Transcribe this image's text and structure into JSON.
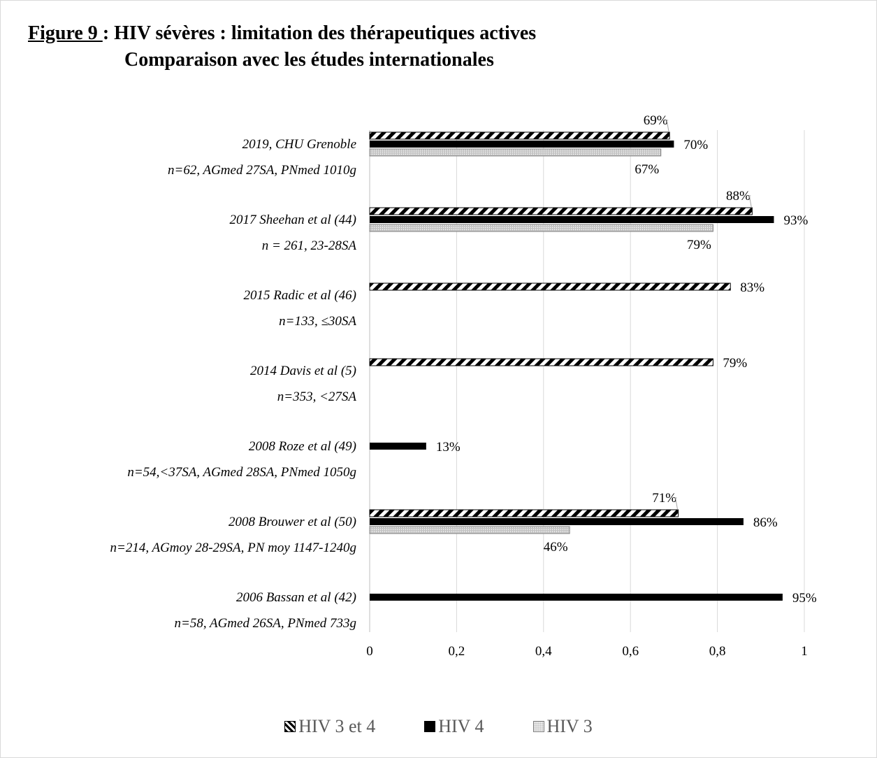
{
  "title": {
    "figure_label": "Figure 9 ",
    "line1": ": HIV sévères : limitation des thérapeutiques actives",
    "line2": "Comparaison avec les études internationales"
  },
  "chart_data": {
    "type": "bar",
    "orientation": "horizontal",
    "title": "Figure 9 : HIV sévères : limitation des thérapeutiques actives — Comparaison avec les études internationales",
    "categories": [
      {
        "name": "2019, CHU Grenoble",
        "detail": "n=62, AGmed 27SA, PNmed 1010g"
      },
      {
        "name": "2017 Sheehan et al (44)",
        "detail": "n = 261, 23-28SA"
      },
      {
        "name": "2015 Radic et al (46)",
        "detail": "n=133, ≤30SA"
      },
      {
        "name": "2014 Davis et al (5)",
        "detail": "n=353, <27SA"
      },
      {
        "name": "2008 Roze et al (49)",
        "detail": "n=54,<37SA, AGmed 28SA, PNmed 1050g"
      },
      {
        "name": "2008 Brouwer et al (50)",
        "detail": "n=214, AGmoy 28-29SA, PN moy 1147-1240g"
      },
      {
        "name": "2006 Bassan et al (42)",
        "detail": "n=58, AGmed 26SA, PNmed 733g"
      }
    ],
    "series": [
      {
        "name": "HIV 3 et 4",
        "pattern": "diagonal-stripes",
        "color": "#000000",
        "values": [
          0.69,
          0.88,
          0.83,
          0.79,
          null,
          0.71,
          null
        ],
        "labels": [
          "69%",
          "88%",
          "83%",
          "79%",
          null,
          "71%",
          null
        ]
      },
      {
        "name": "HIV 4",
        "pattern": "solid",
        "color": "#000000",
        "values": [
          0.7,
          0.93,
          null,
          null,
          0.13,
          0.86,
          0.95
        ],
        "labels": [
          "70%",
          "93%",
          null,
          null,
          "13%",
          "86%",
          "95%"
        ]
      },
      {
        "name": "HIV 3",
        "pattern": "dots",
        "color": "#bfbfbf",
        "values": [
          0.67,
          0.79,
          null,
          null,
          null,
          0.46,
          null
        ],
        "labels": [
          "67%",
          "79%",
          null,
          null,
          null,
          "46%",
          null
        ]
      }
    ],
    "xlim": [
      0,
      1
    ],
    "xticks": [
      "0",
      "0,2",
      "0,4",
      "0,6",
      "0,8",
      "1"
    ],
    "xtick_values": [
      0,
      0.2,
      0.4,
      0.6,
      0.8,
      1
    ],
    "grid": "vertical",
    "legend": "bottom"
  }
}
